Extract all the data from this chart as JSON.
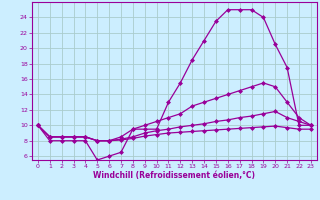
{
  "xlabel": "Windchill (Refroidissement éolien,°C)",
  "background_color": "#cceeff",
  "grid_color": "#aacccc",
  "line_color": "#990099",
  "xlim": [
    -0.5,
    23.5
  ],
  "ylim": [
    5.5,
    26.0
  ],
  "yticks": [
    6,
    8,
    10,
    12,
    14,
    16,
    18,
    20,
    22,
    24
  ],
  "xticks": [
    0,
    1,
    2,
    3,
    4,
    5,
    6,
    7,
    8,
    9,
    10,
    11,
    12,
    13,
    14,
    15,
    16,
    17,
    18,
    19,
    20,
    21,
    22,
    23
  ],
  "series": [
    {
      "x": [
        0,
        1,
        2,
        3,
        4,
        5,
        6,
        7,
        8,
        9,
        10,
        11,
        12,
        13,
        14,
        15,
        16,
        17,
        18,
        19,
        20,
        21,
        22,
        23
      ],
      "y": [
        10,
        8,
        8,
        8,
        8,
        5.5,
        6.0,
        6.5,
        9.5,
        9.5,
        9.5,
        13.0,
        15.5,
        18.5,
        21.0,
        23.5,
        25.0,
        25.0,
        25.0,
        24.0,
        20.5,
        17.5,
        10.0,
        10.0
      ]
    },
    {
      "x": [
        0,
        1,
        2,
        3,
        4,
        5,
        6,
        7,
        8,
        9,
        10,
        11,
        12,
        13,
        14,
        15,
        16,
        17,
        18,
        19,
        20,
        21,
        22,
        23
      ],
      "y": [
        10,
        8.5,
        8.5,
        8.5,
        8.5,
        8.0,
        8.0,
        8.5,
        9.5,
        10.0,
        10.5,
        11.0,
        11.5,
        12.5,
        13.0,
        13.5,
        14.0,
        14.5,
        15.0,
        15.5,
        15.0,
        13.0,
        11.0,
        10.0
      ]
    },
    {
      "x": [
        0,
        1,
        2,
        3,
        4,
        5,
        6,
        7,
        8,
        9,
        10,
        11,
        12,
        13,
        14,
        15,
        16,
        17,
        18,
        19,
        20,
        21,
        22,
        23
      ],
      "y": [
        10,
        8.5,
        8.5,
        8.5,
        8.5,
        8.0,
        8.0,
        8.2,
        8.5,
        9.0,
        9.3,
        9.5,
        9.8,
        10.0,
        10.2,
        10.5,
        10.7,
        11.0,
        11.2,
        11.5,
        11.8,
        11.0,
        10.5,
        10.0
      ]
    },
    {
      "x": [
        0,
        1,
        2,
        3,
        4,
        5,
        6,
        7,
        8,
        9,
        10,
        11,
        12,
        13,
        14,
        15,
        16,
        17,
        18,
        19,
        20,
        21,
        22,
        23
      ],
      "y": [
        10,
        8.5,
        8.5,
        8.5,
        8.5,
        8.0,
        8.0,
        8.1,
        8.3,
        8.6,
        8.8,
        9.0,
        9.1,
        9.2,
        9.3,
        9.4,
        9.5,
        9.6,
        9.7,
        9.8,
        9.9,
        9.7,
        9.5,
        9.5
      ]
    }
  ]
}
